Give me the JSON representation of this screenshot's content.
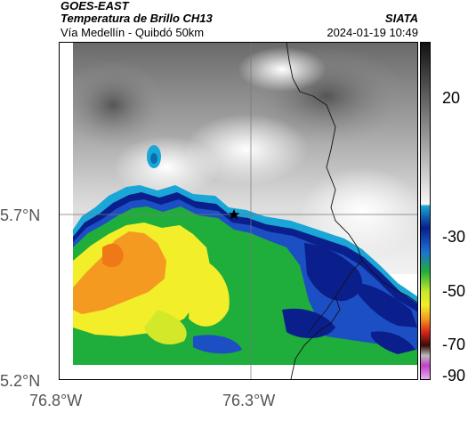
{
  "header": {
    "agency": "GOES-EAST",
    "title": "Temperatura de Brillo CH13",
    "subtitle": "Vía Medellín - Quibdó 50km",
    "org": "SIATA",
    "datetime": "2024-01-19 10:49"
  },
  "axes": {
    "lat_labels": [
      "5.7°N",
      "5.2°N"
    ],
    "lon_labels": [
      "76.8°W",
      "76.3°W"
    ]
  },
  "colorbar": {
    "ticks": [
      "20",
      "-30",
      "-50",
      "-70",
      "-90"
    ],
    "colors": {
      "white": "#f4f4f4",
      "cyan": "#1aa6d6",
      "navy": "#0a1f8c",
      "green": "#1fae3c",
      "yellow": "#f2ee2a",
      "orange": "#f59a20",
      "red": "#d6261a",
      "magenta": "#c040c8",
      "gray": "#7a7a7a",
      "black": "#111111"
    }
  },
  "map": {
    "marker": "star-marker",
    "crosshair": true
  }
}
